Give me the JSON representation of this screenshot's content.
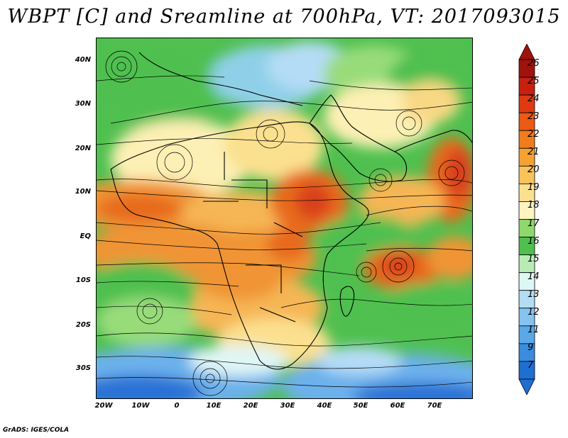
{
  "title": "WBPT [C] and Sreamline at 700hPa, VT: 2017093015",
  "footer": "GrADS: IGES/COLA",
  "lat_labels": [
    "40N",
    "30N",
    "20N",
    "10N",
    "EQ",
    "10S",
    "20S",
    "30S"
  ],
  "lon_labels": [
    "20W",
    "10W",
    "0",
    "10E",
    "20E",
    "30E",
    "40E",
    "50E",
    "60E",
    "70E"
  ],
  "colorbar": {
    "labels": [
      "26",
      "25",
      "24",
      "23",
      "22",
      "21",
      "20",
      "19",
      "18",
      "17",
      "16",
      "15",
      "14",
      "13",
      "12",
      "11",
      "9",
      "7"
    ],
    "colors": [
      "#a0120c",
      "#c8200f",
      "#e03a12",
      "#ec5a14",
      "#f07d1c",
      "#f5a232",
      "#f8c35a",
      "#fbe08f",
      "#fdf4bf",
      "#8fd86c",
      "#4fbf4f",
      "#b8ecb4",
      "#dcf7f4",
      "#b3dcf5",
      "#86c3ef",
      "#5aa8e8",
      "#3a8cde",
      "#1f6fd2"
    ]
  },
  "map": {
    "field_colors": {
      "deep_blue": "#2a72d6",
      "blue": "#6cb1ec",
      "light_blue": "#b5dcf6",
      "cyan": "#dff6f6",
      "green": "#4fc04f",
      "light_green": "#98dc7a",
      "pale_yellow": "#fdf0b4",
      "yellow": "#f9d884",
      "light_orange": "#f6b655",
      "orange": "#f09434",
      "dark_orange": "#e86a1e",
      "red": "#d9411a"
    }
  }
}
